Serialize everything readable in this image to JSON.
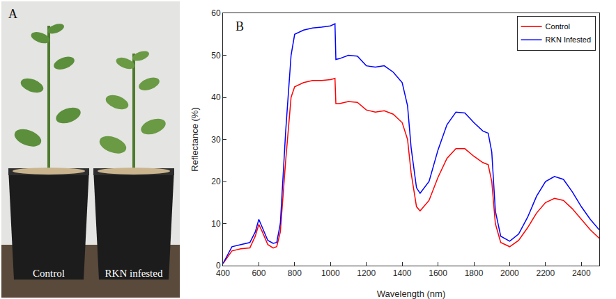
{
  "photo": {
    "panel_label": "A",
    "labels": [
      "Control",
      "RKN infested"
    ]
  },
  "chart_data": {
    "type": "line",
    "panel_label": "B",
    "x_label": "Wavelength (nm)",
    "y_label": "Reflectance (%)",
    "x": [
      400,
      450,
      500,
      550,
      580,
      600,
      620,
      650,
      680,
      700,
      720,
      750,
      780,
      800,
      850,
      900,
      950,
      1000,
      1025,
      1030,
      1050,
      1100,
      1150,
      1200,
      1250,
      1300,
      1350,
      1400,
      1430,
      1450,
      1480,
      1500,
      1550,
      1600,
      1650,
      1700,
      1750,
      1800,
      1850,
      1880,
      1900,
      1920,
      1950,
      2000,
      2050,
      2100,
      2150,
      2200,
      2250,
      2300,
      2350,
      2400,
      2450,
      2500
    ],
    "series": [
      {
        "name": "Control",
        "color": "#ff0000",
        "line_style": "solid",
        "values": [
          0.5,
          3.5,
          4,
          4.2,
          7,
          9.8,
          8,
          5,
          4.2,
          4.5,
          8,
          25,
          40,
          42.5,
          43.5,
          44,
          44,
          44.2,
          44.5,
          38.5,
          38.5,
          39,
          38.8,
          37,
          36.5,
          36.8,
          36,
          34,
          30,
          22,
          14,
          13,
          15.5,
          21,
          25.5,
          27.8,
          27.8,
          26,
          24.5,
          24,
          20,
          10,
          5.5,
          4.5,
          6,
          9,
          12.5,
          15,
          16,
          15.5,
          13.5,
          11,
          8.5,
          6.5
        ]
      },
      {
        "name": "RKN Infested",
        "color": "#0000ff",
        "line_style": "solid",
        "values": [
          0.5,
          4.5,
          5,
          5.5,
          8,
          11,
          9,
          6,
          5.3,
          5.5,
          10,
          32,
          50,
          55,
          56,
          56.5,
          56.7,
          57,
          57.5,
          49,
          49.2,
          50,
          49.8,
          47.5,
          47.2,
          47.5,
          46,
          43.5,
          38,
          28,
          18.5,
          17.2,
          20,
          27.5,
          33.5,
          36.5,
          36.3,
          34,
          32,
          31.5,
          27,
          13,
          7,
          5.8,
          7.5,
          11.5,
          16.5,
          20,
          21.2,
          20.5,
          17.5,
          14,
          11,
          8.5
        ]
      }
    ],
    "xlim": [
      400,
      2500
    ],
    "xticks": [
      400,
      600,
      800,
      1000,
      1200,
      1400,
      1600,
      1800,
      2000,
      2200,
      2400
    ],
    "ylim": [
      0,
      60
    ],
    "yticks": [
      0,
      10,
      20,
      30,
      40,
      50,
      60
    ],
    "grid": false,
    "legend": "upper right"
  }
}
